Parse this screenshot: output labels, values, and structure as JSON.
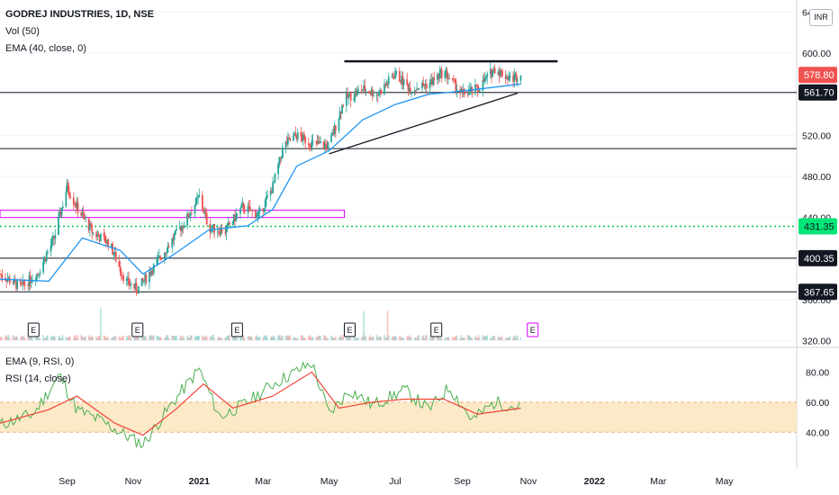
{
  "header": {
    "title": "GODREJ INDUSTRIES, 1D, NSE",
    "volume_label": "Vol (50)",
    "ema_label": "EMA (40, close, 0)",
    "currency": "INR"
  },
  "sub": {
    "ema_label": "EMA (9, RSI, 0)",
    "rsi_label": "RSI (14, close)"
  },
  "colors": {
    "up": "#26a69a",
    "down": "#ef5350",
    "ema": "#2196f3",
    "rsi": "#4caf50",
    "rsi_ema": "#f44336",
    "band": "#fbe9c8",
    "zone": "#d500f9",
    "support": "#00c853"
  },
  "chart_data": {
    "type": "candlestick",
    "price_axis": {
      "ticks": [
        320,
        360,
        400,
        440,
        480,
        520,
        560,
        600,
        640
      ],
      "range": [
        320,
        640
      ]
    },
    "time_axis": [
      "Sep",
      "Nov",
      "2021",
      "Mar",
      "May",
      "Jul",
      "Sep",
      "Nov",
      "2022",
      "Mar",
      "May"
    ],
    "price_tags": [
      {
        "label": "578.80",
        "value": 578.8,
        "color": "#ef5350"
      },
      {
        "label": "561.70",
        "value": 561.7,
        "color": "#131722"
      },
      {
        "label": "431.35",
        "value": 431.35,
        "color": "#00e676"
      },
      {
        "label": "400.35",
        "value": 400.35,
        "color": "#131722"
      },
      {
        "label": "367.65",
        "value": 367.65,
        "color": "#131722"
      }
    ],
    "horizontal_levels": [
      561.7,
      507,
      400.35,
      367.65
    ],
    "support_level": 431.35,
    "resistance_line": {
      "from": "2021-05-15",
      "to": "2021-11-28",
      "value": 592
    },
    "trend_line": {
      "from": [
        "2021-05-01",
        502
      ],
      "to": [
        "2021-10-22",
        561
      ]
    },
    "zone": {
      "from": "2020-07-01",
      "to": "2021-05-15",
      "low": 440,
      "high": 447
    },
    "price_series": [
      {
        "date": "2020-07-01",
        "close": 385
      },
      {
        "date": "2020-07-20",
        "close": 372
      },
      {
        "date": "2020-08-05",
        "close": 386
      },
      {
        "date": "2020-08-20",
        "close": 420
      },
      {
        "date": "2020-09-01",
        "close": 470
      },
      {
        "date": "2020-09-10",
        "close": 450
      },
      {
        "date": "2020-09-25",
        "close": 425
      },
      {
        "date": "2020-10-10",
        "close": 415
      },
      {
        "date": "2020-10-25",
        "close": 378
      },
      {
        "date": "2020-11-05",
        "close": 370
      },
      {
        "date": "2020-11-20",
        "close": 392
      },
      {
        "date": "2020-12-05",
        "close": 415
      },
      {
        "date": "2020-12-20",
        "close": 438
      },
      {
        "date": "2021-01-01",
        "close": 460
      },
      {
        "date": "2021-01-10",
        "close": 430
      },
      {
        "date": "2021-01-25",
        "close": 427
      },
      {
        "date": "2021-02-10",
        "close": 450
      },
      {
        "date": "2021-02-25",
        "close": 442
      },
      {
        "date": "2021-03-10",
        "close": 470
      },
      {
        "date": "2021-03-20",
        "close": 510
      },
      {
        "date": "2021-04-01",
        "close": 520
      },
      {
        "date": "2021-04-15",
        "close": 512
      },
      {
        "date": "2021-05-01",
        "close": 510
      },
      {
        "date": "2021-05-15",
        "close": 555
      },
      {
        "date": "2021-06-01",
        "close": 565
      },
      {
        "date": "2021-06-15",
        "close": 560
      },
      {
        "date": "2021-07-01",
        "close": 580
      },
      {
        "date": "2021-07-15",
        "close": 565
      },
      {
        "date": "2021-08-01",
        "close": 570
      },
      {
        "date": "2021-08-15",
        "close": 582
      },
      {
        "date": "2021-09-01",
        "close": 560
      },
      {
        "date": "2021-09-15",
        "close": 565
      },
      {
        "date": "2021-10-01",
        "close": 585
      },
      {
        "date": "2021-10-15",
        "close": 575
      },
      {
        "date": "2021-10-25",
        "close": 578.8
      }
    ],
    "ema40": [
      {
        "date": "2020-07-01",
        "value": 380
      },
      {
        "date": "2020-08-15",
        "value": 378
      },
      {
        "date": "2020-09-15",
        "value": 420
      },
      {
        "date": "2020-10-20",
        "value": 408
      },
      {
        "date": "2020-11-10",
        "value": 385
      },
      {
        "date": "2020-12-10",
        "value": 405
      },
      {
        "date": "2021-01-10",
        "value": 428
      },
      {
        "date": "2021-02-15",
        "value": 432
      },
      {
        "date": "2021-03-10",
        "value": 448
      },
      {
        "date": "2021-04-01",
        "value": 490
      },
      {
        "date": "2021-05-01",
        "value": 505
      },
      {
        "date": "2021-06-01",
        "value": 535
      },
      {
        "date": "2021-07-01",
        "value": 550
      },
      {
        "date": "2021-08-01",
        "value": 560
      },
      {
        "date": "2021-09-01",
        "value": 563
      },
      {
        "date": "2021-10-25",
        "value": 570
      }
    ],
    "earnings": [
      "2020-08-01",
      "2020-11-05",
      "2021-02-05",
      "2021-05-20",
      "2021-08-08",
      "2021-11-05"
    ],
    "rsi_axis": {
      "ticks": [
        40,
        60,
        80
      ],
      "band": [
        40,
        60
      ]
    },
    "rsi_series": [
      {
        "date": "2020-07-01",
        "value": 45
      },
      {
        "date": "2020-08-01",
        "value": 52
      },
      {
        "date": "2020-08-25",
        "value": 78
      },
      {
        "date": "2020-09-10",
        "value": 55
      },
      {
        "date": "2020-10-01",
        "value": 48
      },
      {
        "date": "2020-10-25",
        "value": 38
      },
      {
        "date": "2020-11-10",
        "value": 32
      },
      {
        "date": "2020-12-10",
        "value": 62
      },
      {
        "date": "2021-01-01",
        "value": 82
      },
      {
        "date": "2021-01-20",
        "value": 50
      },
      {
        "date": "2021-02-15",
        "value": 60
      },
      {
        "date": "2021-03-10",
        "value": 72
      },
      {
        "date": "2021-04-15",
        "value": 86
      },
      {
        "date": "2021-05-01",
        "value": 52
      },
      {
        "date": "2021-05-20",
        "value": 68
      },
      {
        "date": "2021-06-10",
        "value": 58
      },
      {
        "date": "2021-07-10",
        "value": 68
      },
      {
        "date": "2021-08-01",
        "value": 55
      },
      {
        "date": "2021-08-20",
        "value": 70
      },
      {
        "date": "2021-09-10",
        "value": 48
      },
      {
        "date": "2021-10-01",
        "value": 60
      },
      {
        "date": "2021-10-25",
        "value": 56
      }
    ],
    "rsi_ema_series": [
      {
        "date": "2020-07-01",
        "value": 46
      },
      {
        "date": "2020-08-15",
        "value": 55
      },
      {
        "date": "2020-09-10",
        "value": 64
      },
      {
        "date": "2020-10-15",
        "value": 46
      },
      {
        "date": "2020-11-10",
        "value": 38
      },
      {
        "date": "2020-12-10",
        "value": 55
      },
      {
        "date": "2021-01-05",
        "value": 72
      },
      {
        "date": "2021-02-01",
        "value": 56
      },
      {
        "date": "2021-03-10",
        "value": 64
      },
      {
        "date": "2021-04-15",
        "value": 80
      },
      {
        "date": "2021-05-10",
        "value": 56
      },
      {
        "date": "2021-06-10",
        "value": 60
      },
      {
        "date": "2021-07-10",
        "value": 62
      },
      {
        "date": "2021-08-15",
        "value": 62
      },
      {
        "date": "2021-09-15",
        "value": 52
      },
      {
        "date": "2021-10-25",
        "value": 56
      }
    ]
  }
}
